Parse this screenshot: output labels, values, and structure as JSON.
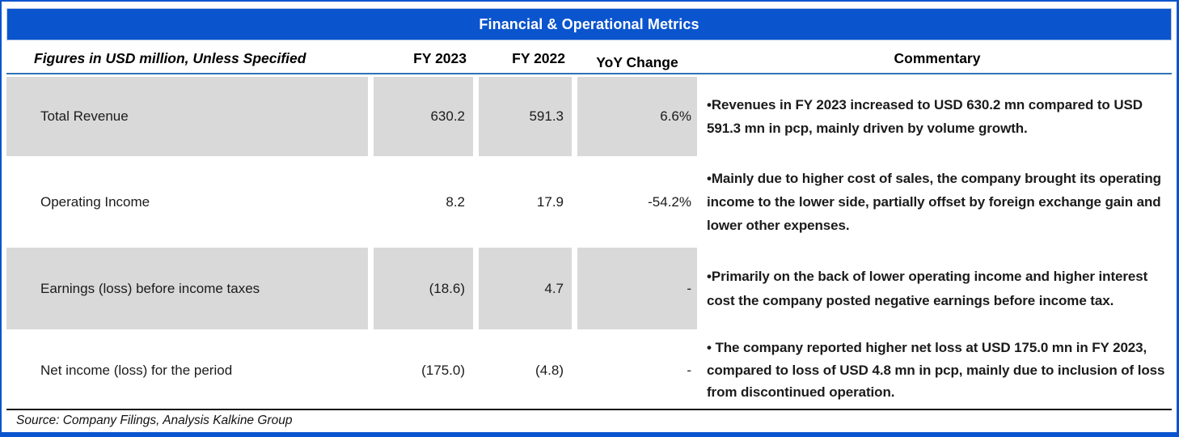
{
  "title": "Financial & Operational Metrics",
  "columns": {
    "metric": "Figures in USD million, Unless Specified",
    "fy2023": "FY 2023",
    "fy2022": "FY 2022",
    "yoy": "YoY Change",
    "commentary": "Commentary"
  },
  "rows": [
    {
      "metric": "Total Revenue",
      "fy2023": "630.2",
      "fy2022": "591.3",
      "yoy": "6.6%",
      "commentary": "•Revenues in FY 2023 increased to USD 630.2 mn compared to USD 591.3 mn in pcp, mainly driven by volume growth."
    },
    {
      "metric": "Operating Income",
      "fy2023": "8.2",
      "fy2022": "17.9",
      "yoy": "-54.2%",
      "commentary": "•Mainly due to higher cost of sales, the company brought its operating income to the lower side, partially offset by foreign exchange gain and lower other expenses."
    },
    {
      "metric": "Earnings (loss) before income taxes",
      "fy2023": "(18.6)",
      "fy2022": "4.7",
      "yoy": "-",
      "commentary": "•Primarily on the back of lower operating income and higher interest cost the company posted negative earnings before income tax."
    },
    {
      "metric": "Net income (loss) for the period",
      "fy2023": "(175.0)",
      "fy2022": "(4.8)",
      "yoy": "-",
      "commentary": "• The company reported higher net loss at USD 175.0 mn in FY 2023, compared to loss of USD 4.8 mn in pcp, mainly due to inclusion of loss from discontinued operation."
    }
  ],
  "footer": {
    "source": "Source: Company Filings, Analysis Kalkine Group"
  },
  "colors": {
    "accent_blue": "#0A54CE",
    "rule_blue": "#2E74B5",
    "cell_gray": "#D9D9D9"
  },
  "chart_data": {
    "type": "table",
    "title": "Financial & Operational Metrics",
    "unit_note": "Figures in USD million, Unless Specified",
    "columns": [
      "Figures in USD million, Unless Specified",
      "FY 2023",
      "FY 2022",
      "YoY Change",
      "Commentary"
    ],
    "rows": [
      [
        "Total Revenue",
        630.2,
        591.3,
        "6.6%",
        "Revenues in FY 2023 increased to USD 630.2 mn compared to USD 591.3 mn in pcp, mainly driven by volume growth."
      ],
      [
        "Operating Income",
        8.2,
        17.9,
        "-54.2%",
        "Mainly due to higher cost of sales, the company brought its operating income to the lower side, partially offset by foreign exchange gain and lower other expenses."
      ],
      [
        "Earnings (loss) before income taxes",
        -18.6,
        4.7,
        "-",
        "Primarily on the back of lower operating income and higher interest cost the company posted negative earnings before income tax."
      ],
      [
        "Net income (loss) for the period",
        -175.0,
        -4.8,
        "-",
        "The company reported higher net loss at USD 175.0 mn in FY 2023, compared to loss of USD 4.8 mn in pcp, mainly due to inclusion of loss from discontinued operation."
      ]
    ],
    "source_note": "Source: Company Filings, Analysis Kalkine Group",
    "shaded_row_indices": [
      0,
      2
    ]
  }
}
